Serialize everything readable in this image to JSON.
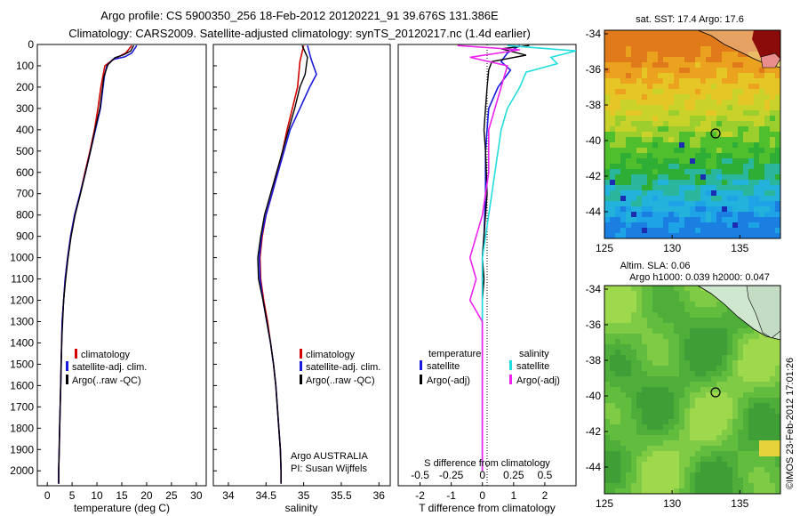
{
  "title": {
    "line1": "Argo profile: CS 5900350_256 18-Feb-2012 20120221_91 39.676S 131.386E",
    "line2": "Climatology: CARS2009. Satellite-adjusted climatology: synTS_20120217.nc (1.4d earlier)"
  },
  "colors": {
    "climatology": "#d40000",
    "satellite": "#1a1adf",
    "argo": "#000000",
    "satellite_diff": "#22dddd",
    "argo_diff": "#ee22ee"
  },
  "chart_data": [
    {
      "type": "line",
      "xlabel": "temperature (deg C)",
      "ylabel": "",
      "xlim": [
        -2,
        32
      ],
      "ylim": [
        2070,
        0
      ],
      "xticks": [
        "0",
        "5",
        "10",
        "15",
        "20",
        "25",
        "30"
      ],
      "yticks": [
        "0",
        "100",
        "200",
        "300",
        "400",
        "500",
        "600",
        "700",
        "800",
        "900",
        "1000",
        "1100",
        "1200",
        "1300",
        "1400",
        "1500",
        "1600",
        "1700",
        "1800",
        "1900",
        "2000"
      ],
      "legend": [
        "climatology",
        "satellite-adj. clim.",
        "Argo(..raw -QC)"
      ],
      "legend_position": "lower-right",
      "series": [
        {
          "name": "climatology",
          "color": "climatology",
          "points": [
            [
              17.0,
              5
            ],
            [
              15.8,
              40
            ],
            [
              14.3,
              58
            ],
            [
              13.0,
              75
            ],
            [
              11.6,
              100
            ],
            [
              10.8,
              200
            ],
            [
              10.2,
              300
            ],
            [
              9.5,
              400
            ],
            [
              8.6,
              500
            ],
            [
              7.6,
              600
            ],
            [
              6.6,
              700
            ],
            [
              5.5,
              800
            ],
            [
              4.7,
              900
            ],
            [
              4.1,
              1000
            ],
            [
              3.6,
              1100
            ],
            [
              3.3,
              1200
            ],
            [
              3.0,
              1300
            ],
            [
              2.9,
              1400
            ],
            [
              2.8,
              1500
            ],
            [
              2.7,
              1600
            ],
            [
              2.6,
              1700
            ],
            [
              2.5,
              1800
            ],
            [
              2.4,
              1900
            ],
            [
              2.3,
              2000
            ],
            [
              2.3,
              2060
            ]
          ]
        },
        {
          "name": "satellite-adj. clim.",
          "color": "satellite",
          "points": [
            [
              18.0,
              5
            ],
            [
              17.0,
              40
            ],
            [
              15.6,
              58
            ],
            [
              13.2,
              70
            ],
            [
              12.0,
              100
            ],
            [
              11.5,
              150
            ],
            [
              10.7,
              300
            ],
            [
              9.7,
              400
            ],
            [
              8.7,
              500
            ],
            [
              7.7,
              600
            ],
            [
              6.6,
              700
            ],
            [
              5.5,
              800
            ],
            [
              4.7,
              900
            ],
            [
              4.1,
              1000
            ],
            [
              3.6,
              1100
            ],
            [
              3.3,
              1200
            ],
            [
              3.0,
              1300
            ],
            [
              2.9,
              1400
            ],
            [
              2.8,
              1500
            ],
            [
              2.7,
              1600
            ],
            [
              2.6,
              1700
            ],
            [
              2.5,
              1800
            ],
            [
              2.4,
              1900
            ],
            [
              2.3,
              2000
            ],
            [
              2.3,
              2060
            ]
          ]
        },
        {
          "name": "Argo(..raw -QC)",
          "color": "argo",
          "points": [
            [
              17.4,
              5
            ],
            [
              16.8,
              30
            ],
            [
              15.4,
              48
            ],
            [
              13.6,
              62
            ],
            [
              12.2,
              95
            ],
            [
              11.4,
              150
            ],
            [
              10.6,
              300
            ],
            [
              9.6,
              400
            ],
            [
              8.7,
              500
            ],
            [
              7.7,
              600
            ],
            [
              6.7,
              700
            ],
            [
              5.6,
              800
            ],
            [
              4.8,
              900
            ],
            [
              4.2,
              1000
            ],
            [
              3.7,
              1100
            ],
            [
              3.3,
              1200
            ],
            [
              3.1,
              1300
            ],
            [
              2.9,
              1400
            ],
            [
              2.8,
              1500
            ],
            [
              2.7,
              1600
            ],
            [
              2.6,
              1700
            ],
            [
              2.5,
              1800
            ],
            [
              2.4,
              1900
            ],
            [
              2.3,
              2000
            ],
            [
              2.3,
              2060
            ]
          ]
        }
      ]
    },
    {
      "type": "line",
      "xlabel": "salinity",
      "ylabel": "",
      "xlim": [
        33.8,
        36.15
      ],
      "ylim": [
        2070,
        0
      ],
      "xticks": [
        "34",
        "34.5",
        "35",
        "35.5",
        "36"
      ],
      "legend": [
        "climatology",
        "satellite-adj. clim.",
        "Argo(..raw -QC)"
      ],
      "legend_position": "lower-right",
      "annotations": [
        "Argo AUSTRALIA",
        "PI: Susan Wijffels"
      ],
      "series": [
        {
          "name": "climatology",
          "color": "climatology",
          "points": [
            [
              35.0,
              5
            ],
            [
              34.95,
              80
            ],
            [
              34.92,
              200
            ],
            [
              34.85,
              300
            ],
            [
              34.78,
              400
            ],
            [
              34.72,
              500
            ],
            [
              34.65,
              600
            ],
            [
              34.58,
              700
            ],
            [
              34.5,
              800
            ],
            [
              34.45,
              900
            ],
            [
              34.42,
              1000
            ],
            [
              34.43,
              1100
            ],
            [
              34.47,
              1200
            ],
            [
              34.52,
              1300
            ],
            [
              34.56,
              1400
            ],
            [
              34.6,
              1500
            ],
            [
              34.63,
              1600
            ],
            [
              34.65,
              1700
            ],
            [
              34.67,
              1800
            ],
            [
              34.69,
              1900
            ],
            [
              34.7,
              2000
            ],
            [
              34.7,
              2060
            ]
          ]
        },
        {
          "name": "satellite-adj. clim.",
          "color": "satellite",
          "points": [
            [
              35.05,
              5
            ],
            [
              35.1,
              70
            ],
            [
              35.17,
              140
            ],
            [
              35.08,
              200
            ],
            [
              34.95,
              300
            ],
            [
              34.82,
              400
            ],
            [
              34.74,
              500
            ],
            [
              34.66,
              600
            ],
            [
              34.58,
              700
            ],
            [
              34.5,
              800
            ],
            [
              34.44,
              900
            ],
            [
              34.41,
              1000
            ],
            [
              34.42,
              1100
            ],
            [
              34.46,
              1200
            ],
            [
              34.51,
              1300
            ],
            [
              34.56,
              1400
            ],
            [
              34.6,
              1500
            ],
            [
              34.63,
              1600
            ],
            [
              34.65,
              1700
            ],
            [
              34.67,
              1800
            ],
            [
              34.69,
              1900
            ],
            [
              34.7,
              2000
            ],
            [
              34.7,
              2060
            ]
          ]
        },
        {
          "name": "Argo(..raw -QC)",
          "color": "argo",
          "points": [
            [
              34.98,
              5
            ],
            [
              35.05,
              60
            ],
            [
              35.02,
              140
            ],
            [
              34.95,
              200
            ],
            [
              34.88,
              300
            ],
            [
              34.8,
              400
            ],
            [
              34.72,
              500
            ],
            [
              34.64,
              600
            ],
            [
              34.56,
              700
            ],
            [
              34.48,
              800
            ],
            [
              34.43,
              900
            ],
            [
              34.39,
              1000
            ],
            [
              34.4,
              1100
            ],
            [
              34.46,
              1200
            ],
            [
              34.51,
              1300
            ],
            [
              34.56,
              1400
            ],
            [
              34.6,
              1500
            ],
            [
              34.63,
              1600
            ],
            [
              34.65,
              1700
            ],
            [
              34.67,
              1800
            ],
            [
              34.69,
              1900
            ],
            [
              34.7,
              2000
            ],
            [
              34.7,
              2060
            ]
          ]
        }
      ]
    },
    {
      "type": "line",
      "xlabel": "T difference from climatology",
      "xlabel2": "S difference from climatology",
      "xlim": [
        -2.7,
        3.0
      ],
      "ylim": [
        2070,
        0
      ],
      "xticks": [
        "-2",
        "-1",
        "0",
        "1",
        "2"
      ],
      "xticks2": [
        "-0.5",
        "-0.25",
        "0",
        "0.25",
        "0.5"
      ],
      "legend_groups": [
        "temperature",
        "salinity"
      ],
      "legend_temperature": [
        "satellite",
        "Argo(-adj)"
      ],
      "legend_salinity": [
        "satellite",
        "Argo(-adj)"
      ],
      "legend_position": "lower-center",
      "series": [
        {
          "name": "temperature satellite",
          "color": "satellite",
          "points": [
            [
              1.2,
              5
            ],
            [
              0.8,
              40
            ],
            [
              0.6,
              80
            ],
            [
              0.9,
              120
            ],
            [
              0.5,
              200
            ],
            [
              0.2,
              300
            ],
            [
              0.15,
              400
            ],
            [
              0.1,
              500
            ],
            [
              0.1,
              700
            ],
            [
              0.05,
              900
            ],
            [
              0.0,
              1000
            ],
            [
              0.0,
              1200
            ],
            [
              0.0,
              1500
            ],
            [
              0.0,
              2000
            ]
          ]
        },
        {
          "name": "temperature Argo(-adj)",
          "color": "argo",
          "points": [
            [
              1.5,
              5
            ],
            [
              0.6,
              20
            ],
            [
              1.4,
              50
            ],
            [
              0.3,
              80
            ],
            [
              0.2,
              120
            ],
            [
              0.15,
              200
            ],
            [
              0.1,
              300
            ],
            [
              0.05,
              400
            ],
            [
              0.1,
              500
            ],
            [
              0.15,
              700
            ],
            [
              0.1,
              800
            ],
            [
              0.0,
              1000
            ],
            [
              0.05,
              1100
            ],
            [
              0.0,
              1200
            ],
            [
              0.0,
              1500
            ],
            [
              0.0,
              2000
            ]
          ]
        },
        {
          "name": "salinity satellite",
          "color": "satellite_diff",
          "points": [
            [
              0.2,
              5
            ],
            [
              0.75,
              30
            ],
            [
              0.55,
              60
            ],
            [
              0.6,
              90
            ],
            [
              0.35,
              130
            ],
            [
              0.3,
              200
            ],
            [
              0.2,
              300
            ],
            [
              0.15,
              400
            ],
            [
              0.1,
              600
            ],
            [
              0.05,
              800
            ],
            [
              0.0,
              1000
            ],
            [
              0.0,
              1500
            ],
            [
              0.0,
              2000
            ]
          ]
        },
        {
          "name": "salinity Argo(-adj)",
          "color": "argo_diff",
          "points": [
            [
              -0.2,
              5
            ],
            [
              0.3,
              25
            ],
            [
              -0.1,
              60
            ],
            [
              0.2,
              100
            ],
            [
              0.15,
              200
            ],
            [
              0.1,
              300
            ],
            [
              0.05,
              400
            ],
            [
              0.05,
              600
            ],
            [
              0.0,
              800
            ],
            [
              -0.1,
              1000
            ],
            [
              -0.05,
              1100
            ],
            [
              -0.1,
              1200
            ],
            [
              0.0,
              1300
            ],
            [
              0.0,
              1500
            ],
            [
              0.0,
              2000
            ]
          ]
        }
      ]
    },
    {
      "type": "heatmap",
      "title": "sat. SST: 17.4  Argo: 17.6",
      "xlim": [
        125,
        138
      ],
      "ylim": [
        -45.5,
        -33.8
      ],
      "xticks": [
        "125",
        "130",
        "135"
      ],
      "yticks": [
        "-34",
        "-36",
        "-38",
        "-40",
        "-42",
        "-44"
      ],
      "marker": {
        "lon": 131.386,
        "lat": -39.676
      }
    },
    {
      "type": "heatmap",
      "title": "Altim. SLA: 0.06",
      "subtitle": "Argo h1000: 0.039 h2000: 0.047",
      "xlim": [
        125,
        138
      ],
      "ylim": [
        -45.5,
        -33.8
      ],
      "xticks": [
        "125",
        "130",
        "135"
      ],
      "yticks": [
        "-34",
        "-36",
        "-38",
        "-40",
        "-42",
        "-44"
      ],
      "marker": {
        "lon": 131.386,
        "lat": -39.676
      }
    }
  ],
  "credit": "©IMOS 23-Feb-2012 17:01:26"
}
